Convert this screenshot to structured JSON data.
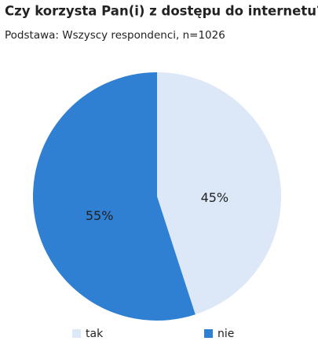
{
  "chart_data": {
    "type": "pie",
    "title": "Czy korzysta Pan(i) z dostępu do internetu?",
    "subtitle": "Podstawa: Wszyscy respondenci, n=1026",
    "categories": [
      "tak",
      "nie"
    ],
    "values": [
      45,
      55
    ],
    "value_labels": [
      "45%",
      "55%"
    ],
    "colors": [
      "#dce8f7",
      "#2f7fd3"
    ],
    "legend": "bottom"
  }
}
